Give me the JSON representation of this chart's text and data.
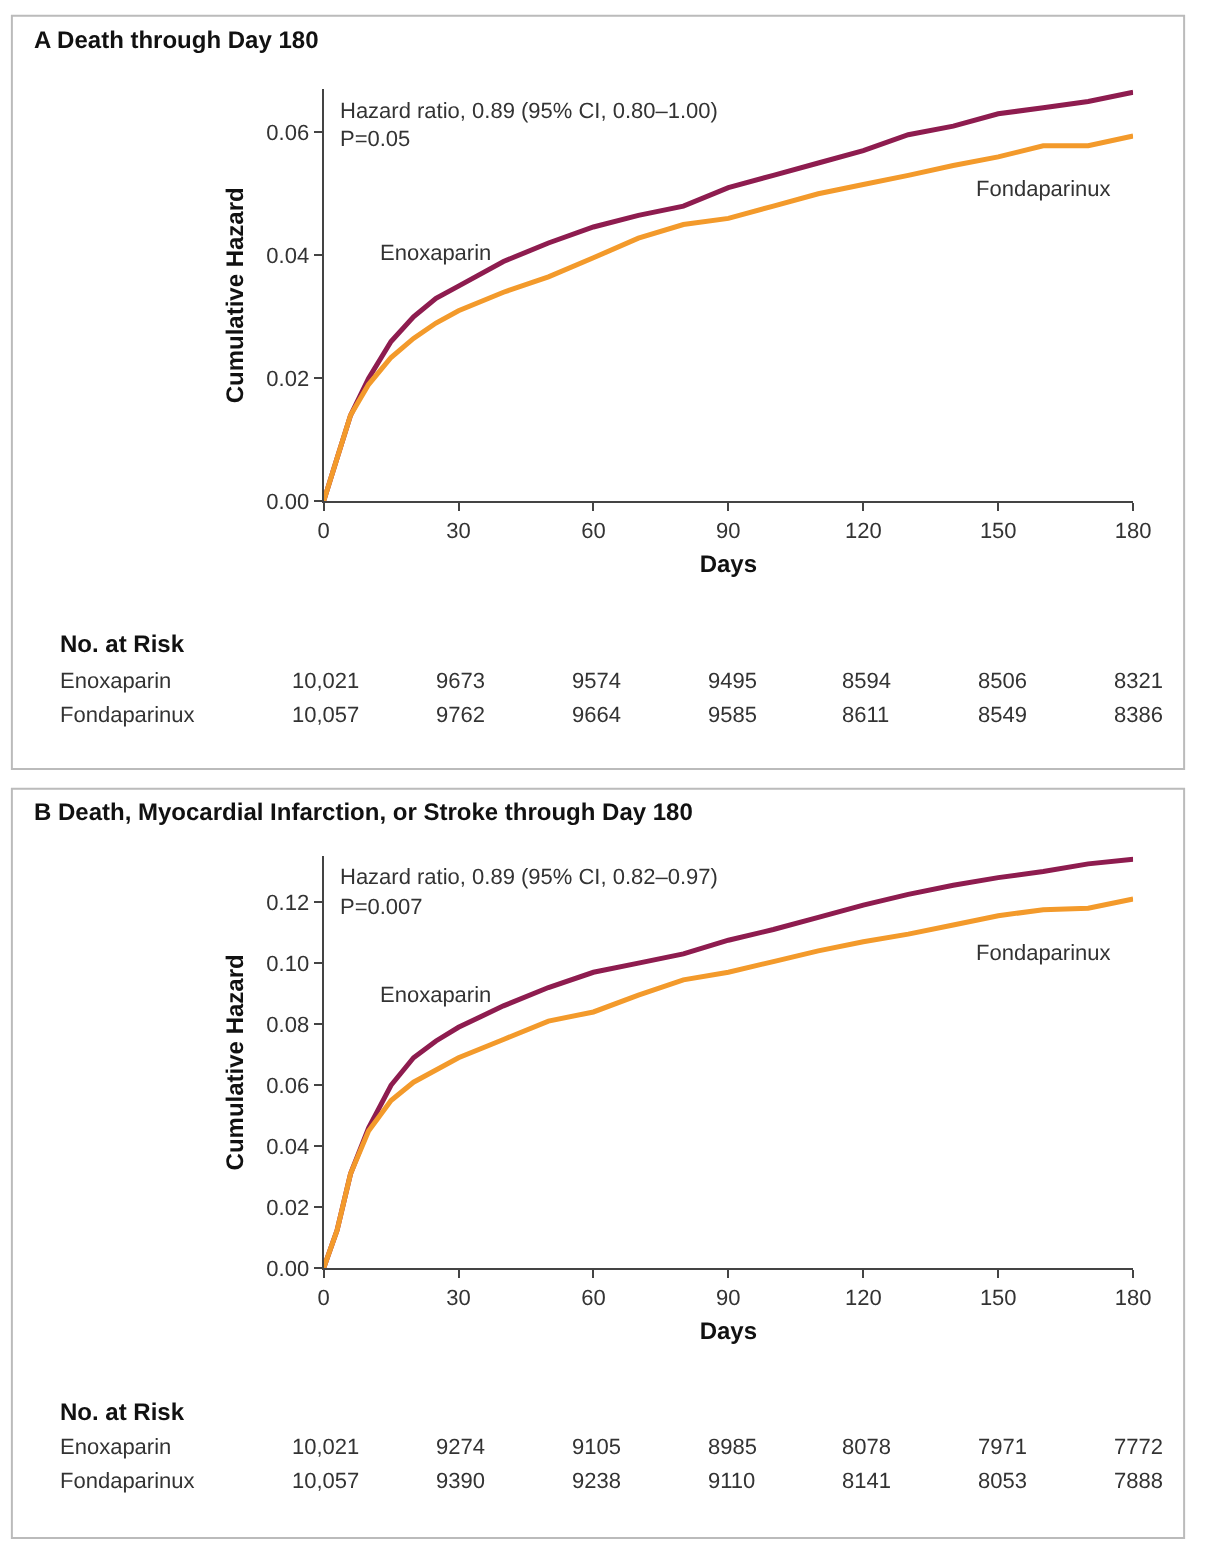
{
  "chart_data": [
    {
      "type": "line",
      "title": "A Death through Day 180",
      "xlabel": "Days",
      "ylabel": "Cumulative Hazard",
      "xlim": [
        0,
        180
      ],
      "xticks": [
        0,
        30,
        60,
        90,
        120,
        150,
        180
      ],
      "ylim": [
        0,
        0.067
      ],
      "yticks": [
        {
          "value": 0,
          "label": "0.00"
        },
        {
          "value": 0.02,
          "label": "0.02"
        },
        {
          "value": 0.04,
          "label": "0.04"
        },
        {
          "value": 0.06,
          "label": "0.06"
        }
      ],
      "marker": "none",
      "line_style": "solid",
      "x": [
        0,
        3,
        6,
        10,
        15,
        20,
        25,
        30,
        40,
        50,
        60,
        70,
        80,
        90,
        100,
        110,
        120,
        130,
        140,
        150,
        160,
        170,
        180
      ],
      "series": [
        {
          "name": "Enoxaparin",
          "color": "#8e1c4f",
          "values": [
            0,
            0.007,
            0.014,
            0.02,
            0.026,
            0.03,
            0.033,
            0.035,
            0.039,
            0.042,
            0.0446,
            0.0465,
            0.048,
            0.051,
            0.053,
            0.055,
            0.057,
            0.0596,
            0.061,
            0.063,
            0.064,
            0.065,
            0.0665
          ]
        },
        {
          "name": "Fondaparinux",
          "color": "#f39a2b",
          "values": [
            0,
            0.007,
            0.014,
            0.019,
            0.0234,
            0.0265,
            0.029,
            0.031,
            0.034,
            0.0365,
            0.0396,
            0.0428,
            0.045,
            0.046,
            0.048,
            0.05,
            0.0515,
            0.053,
            0.0546,
            0.056,
            0.0578,
            0.0578,
            0.0594
          ]
        }
      ],
      "annotations": [
        "Hazard ratio, 0.89 (95% CI, 0.80–1.00)",
        "P=0.05",
        "No. at Risk",
        "Enoxaparin",
        "10,021",
        "9673",
        "9574",
        "9495",
        "8594",
        "8506",
        "8321",
        "Fondaparinux",
        "10,057",
        "9762",
        "9664",
        "9585",
        "8611",
        "8549",
        "8386"
      ]
    },
    {
      "type": "line",
      "title": "B Death, Myocardial Infarction, or Stroke through Day 180",
      "xlabel": "Days",
      "ylabel": "Cumulative Hazard",
      "xlim": [
        0,
        180
      ],
      "xticks": [
        0,
        30,
        60,
        90,
        120,
        150,
        180
      ],
      "ylim": [
        0,
        0.135
      ],
      "yticks": [
        {
          "value": 0,
          "label": "0.00"
        },
        {
          "value": 0.02,
          "label": "0.02"
        },
        {
          "value": 0.04,
          "label": "0.04"
        },
        {
          "value": 0.06,
          "label": "0.06"
        },
        {
          "value": 0.08,
          "label": "0.08"
        },
        {
          "value": 0.1,
          "label": "0.10"
        },
        {
          "value": 0.12,
          "label": "0.12"
        }
      ],
      "marker": "none",
      "line_style": "solid",
      "x": [
        0,
        3,
        6,
        10,
        15,
        20,
        25,
        30,
        40,
        50,
        60,
        70,
        80,
        90,
        100,
        110,
        120,
        130,
        140,
        150,
        160,
        170,
        180
      ],
      "series": [
        {
          "name": "Enoxaparin",
          "color": "#8e1c4f",
          "values": [
            0,
            0.0125,
            0.031,
            0.046,
            0.06,
            0.069,
            0.0745,
            0.079,
            0.086,
            0.092,
            0.097,
            0.1,
            0.103,
            0.1075,
            0.111,
            0.115,
            0.119,
            0.1225,
            0.1255,
            0.128,
            0.13,
            0.1325,
            0.134
          ]
        },
        {
          "name": "Fondaparinux",
          "color": "#f39a2b",
          "values": [
            0,
            0.0125,
            0.031,
            0.045,
            0.055,
            0.061,
            0.065,
            0.069,
            0.075,
            0.081,
            0.084,
            0.0895,
            0.0945,
            0.097,
            0.1005,
            0.104,
            0.107,
            0.1095,
            0.1125,
            0.1155,
            0.1175,
            0.118,
            0.121
          ]
        }
      ],
      "annotations": [
        "Hazard ratio, 0.89 (95% CI, 0.82–0.97)",
        "P=0.007",
        "No. at Risk",
        "Enoxaparin",
        "10,021",
        "9274",
        "9105",
        "8985",
        "8078",
        "7971",
        "7772",
        "Fondaparinux",
        "10,057",
        "9390",
        "9238",
        "9110",
        "8141",
        "8053",
        "7888"
      ]
    }
  ]
}
